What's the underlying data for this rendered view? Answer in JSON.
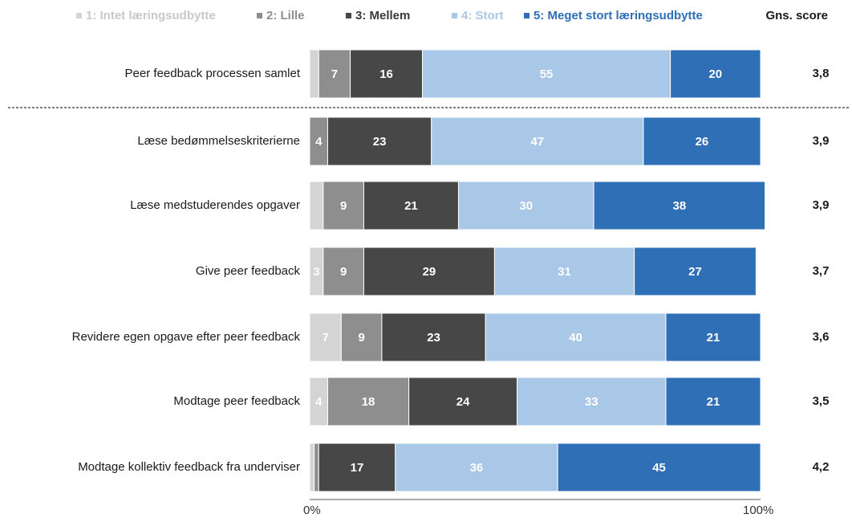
{
  "chart_data": {
    "type": "bar",
    "orientation": "horizontal",
    "stacked": "percent",
    "categories": [
      "Peer feedback processen samlet",
      "Læse bedømmelseskriterierne",
      "Læse medstuderendes opgaver",
      "Give peer feedback",
      "Revidere egen opgave efter peer feedback",
      "Modtage peer feedback",
      "Modtage kollektiv feedback fra underviser"
    ],
    "series": [
      {
        "name": "1: Intet læringsudbytte",
        "color": "#d4d4d4",
        "values": [
          2,
          0,
          3,
          3,
          7,
          4,
          1
        ]
      },
      {
        "name": "2: Lille",
        "color": "#8e8e8e",
        "values": [
          7,
          4,
          9,
          9,
          9,
          18,
          1
        ]
      },
      {
        "name": "3: Mellem",
        "color": "#474747",
        "values": [
          16,
          23,
          21,
          29,
          23,
          24,
          17
        ]
      },
      {
        "name": "4: Stort",
        "color": "#a9c8e8",
        "values": [
          55,
          47,
          30,
          31,
          40,
          33,
          36
        ]
      },
      {
        "name": "5: Meget stort læringsudbytte",
        "color": "#2e6fb6",
        "values": [
          20,
          26,
          38,
          27,
          21,
          21,
          45
        ]
      }
    ],
    "data_labels": [
      [
        "",
        "7",
        "16",
        "55",
        "20"
      ],
      [
        "",
        "4",
        "23",
        "47",
        "26"
      ],
      [
        "",
        "9",
        "21",
        "30",
        "38"
      ],
      [
        "3",
        "9",
        "29",
        "31",
        "27"
      ],
      [
        "7",
        "9",
        "23",
        "40",
        "21"
      ],
      [
        "4",
        "18",
        "24",
        "33",
        "21"
      ],
      [
        "",
        "",
        "17",
        "36",
        "45"
      ]
    ],
    "score_header": "Gns. score",
    "scores": [
      "3,8",
      "3,9",
      "3,9",
      "3,7",
      "3,6",
      "3,5",
      "4,2"
    ],
    "xlim": [
      0,
      100
    ],
    "x_ticks": [
      "0%",
      "100%"
    ],
    "separator_after_row": 0,
    "legend_position": "top",
    "grid": false
  }
}
